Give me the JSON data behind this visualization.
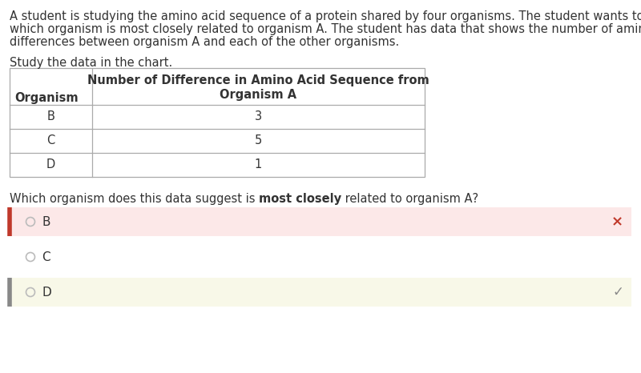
{
  "paragraph_text_line1": "A student is studying the amino acid sequence of a protein shared by four organisms. The student wants to know",
  "paragraph_text_line2": "which organism is most closely related to organism A. The student has data that shows the number of amino acid",
  "paragraph_text_line3": "differences between organism A and each of the other organisms.",
  "study_text": "Study the data in the chart.",
  "table_header_col1": "Organism",
  "table_header_col2_line1": "Number of Difference in Amino Acid Sequence from",
  "table_header_col2_line2": "Organism A",
  "table_rows": [
    {
      "organism": "B",
      "value": "3"
    },
    {
      "organism": "C",
      "value": "5"
    },
    {
      "organism": "D",
      "value": "1"
    }
  ],
  "question_normal1": "Which organism does this data suggest is ",
  "question_bold": "most closely",
  "question_normal2": " related to organism A?",
  "options": [
    {
      "label": "B",
      "selected": true,
      "correct": false,
      "bg_color": "#fce8e8",
      "left_bar_color": "#c0392b",
      "mark": "×",
      "mark_color": "#c0392b",
      "has_bg": true
    },
    {
      "label": "C",
      "selected": false,
      "correct": false,
      "bg_color": "#ffffff",
      "left_bar_color": null,
      "mark": "",
      "mark_color": null,
      "has_bg": false
    },
    {
      "label": "D",
      "selected": false,
      "correct": true,
      "bg_color": "#f8f8e8",
      "left_bar_color": "#888888",
      "mark": "✓",
      "mark_color": "#888888",
      "has_bg": true
    }
  ],
  "bg_color": "#ffffff",
  "text_color": "#333333",
  "table_border_color": "#aaaaaa",
  "body_fontsize": 10.5,
  "table_fontsize": 10.5,
  "question_fontsize": 10.5,
  "option_fontsize": 11
}
